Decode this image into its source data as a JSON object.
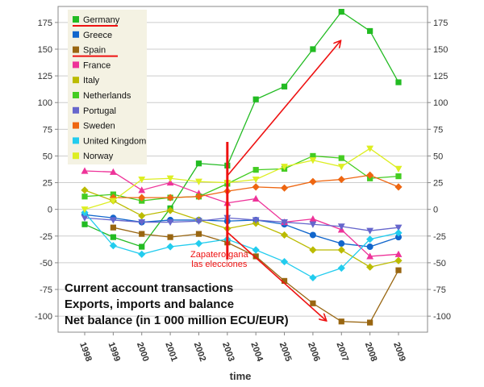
{
  "chart_data": {
    "type": "line",
    "x": [
      1998,
      1999,
      2000,
      2001,
      2002,
      2003,
      2004,
      2005,
      2006,
      2007,
      2008,
      2009
    ],
    "xticks": [
      "1998",
      "1999",
      "2000",
      "2001",
      "2002",
      "2003",
      "2004",
      "2005",
      "2006",
      "2007",
      "2008",
      "2009"
    ],
    "xlabel": "time",
    "ylim": [
      -115,
      190
    ],
    "yticks": [
      175,
      150,
      125,
      100,
      75,
      50,
      25,
      0,
      -25,
      -50,
      -75,
      -100
    ],
    "ytick_labels": [
      "175",
      "150",
      "125",
      "100",
      "75",
      "50",
      "25",
      "0",
      "-25",
      "-50",
      "-75",
      "-100"
    ],
    "grid": true,
    "legend_position": "top-left",
    "series": [
      {
        "name": "Germany",
        "color": "#22bb22",
        "marker": "square",
        "values": [
          -14,
          -26,
          -35,
          1,
          43,
          41,
          103,
          115,
          150,
          185,
          167,
          119
        ]
      },
      {
        "name": "Greece",
        "color": "#1166cc",
        "marker": "circle",
        "values": [
          -5,
          -8,
          -12,
          -10,
          -10,
          -11,
          -10,
          -14,
          -24,
          -32,
          -35,
          -26
        ]
      },
      {
        "name": "Spain",
        "color": "#996611",
        "marker": "square",
        "values": [
          null,
          -17,
          -23,
          -26,
          -23,
          -31,
          -44,
          -67,
          -88,
          -105,
          -106,
          -57
        ]
      },
      {
        "name": "France",
        "color": "#ee3399",
        "marker": "triangle",
        "values": [
          36,
          35,
          18,
          25,
          15,
          6,
          10,
          -12,
          -9,
          -19,
          -44,
          -42
        ]
      },
      {
        "name": "Italy",
        "color": "#bbbb00",
        "marker": "diamond",
        "values": [
          18,
          8,
          -6,
          -1,
          -10,
          -18,
          -13,
          -24,
          -38,
          -38,
          -54,
          -48
        ]
      },
      {
        "name": "Netherlands",
        "color": "#44cc22",
        "marker": "square",
        "values": [
          12,
          14,
          8,
          11,
          12,
          24,
          37,
          38,
          50,
          48,
          29,
          31
        ]
      },
      {
        "name": "Portugal",
        "color": "#6666cc",
        "marker": "triangle-down",
        "values": [
          -8,
          -10,
          -12,
          -12,
          -11,
          -8,
          -10,
          -12,
          -14,
          -16,
          -20,
          -17
        ]
      },
      {
        "name": "Sweden",
        "color": "#ee6611",
        "marker": "diamond",
        "values": [
          null,
          11,
          11,
          11,
          12,
          17,
          21,
          20,
          26,
          28,
          32,
          21
        ]
      },
      {
        "name": "United Kingdom",
        "color": "#22ccee",
        "marker": "diamond",
        "values": [
          -3,
          -34,
          -42,
          -35,
          -32,
          -28,
          -38,
          -49,
          -64,
          -55,
          -28,
          -22
        ]
      },
      {
        "name": "Norway",
        "color": "#ddee22",
        "marker": "triangle-down",
        "values": [
          0,
          8,
          28,
          29,
          26,
          25,
          28,
          40,
          46,
          40,
          57,
          38
        ]
      }
    ],
    "annotations": {
      "event_text_line1": "Zapatero gana",
      "event_text_line2": "las elecciones",
      "event_year": 2003,
      "note_lines": [
        "Current account transactions",
        "Exports, imports and balance",
        "Net balance (in 1 000 million ECU/EUR)"
      ],
      "underlined_legend_entries": [
        "Germany",
        "Spain"
      ],
      "arrow_up_to": [
        2007,
        160
      ],
      "arrow_down_to": [
        2007,
        -105
      ],
      "overlay_color": "#ee1111"
    }
  }
}
